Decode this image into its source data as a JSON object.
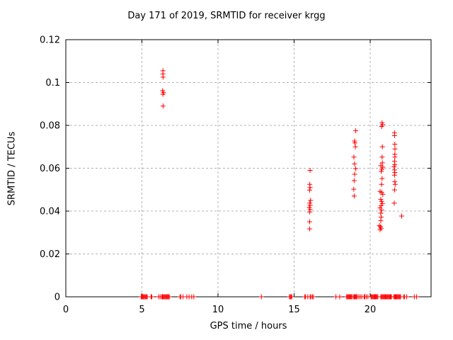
{
  "chart_data": {
    "type": "scatter",
    "title": "Day 171 of 2019, SRMTID for receiver krgg",
    "xlabel": "GPS time / hours",
    "ylabel": "SRMTID / TECUs",
    "xlim": [
      0,
      24
    ],
    "ylim": [
      0,
      0.12
    ],
    "x_ticks": [
      {
        "v": 0,
        "label": "0"
      },
      {
        "v": 5,
        "label": "5"
      },
      {
        "v": 10,
        "label": "10"
      },
      {
        "v": 15,
        "label": "15"
      },
      {
        "v": 20,
        "label": "20"
      }
    ],
    "y_ticks": [
      {
        "v": 0,
        "label": "0"
      },
      {
        "v": 0.02,
        "label": "0.02"
      },
      {
        "v": 0.04,
        "label": "0.04"
      },
      {
        "v": 0.06,
        "label": "0.06"
      },
      {
        "v": 0.08,
        "label": "0.08"
      },
      {
        "v": 0.1,
        "label": "0.1"
      },
      {
        "v": 0.12,
        "label": "0.12"
      }
    ],
    "grid": "dashed",
    "legend": "none",
    "colors": {
      "marker": "#ff0000",
      "grid": "#b3b3b3",
      "border": "#000000",
      "background": "#ffffff"
    },
    "marker": "plus",
    "series": [
      {
        "name": "SRMTID",
        "points": [
          [
            6.38,
            0.1055
          ],
          [
            6.38,
            0.104
          ],
          [
            6.39,
            0.1025
          ],
          [
            6.36,
            0.0962
          ],
          [
            6.42,
            0.0953
          ],
          [
            6.38,
            0.0945
          ],
          [
            6.39,
            0.089
          ],
          [
            16.05,
            0.059
          ],
          [
            16.03,
            0.0525
          ],
          [
            16.05,
            0.051
          ],
          [
            16.02,
            0.0498
          ],
          [
            16.08,
            0.045
          ],
          [
            16.03,
            0.0437
          ],
          [
            16.05,
            0.0427
          ],
          [
            16.0,
            0.0417
          ],
          [
            16.05,
            0.0407
          ],
          [
            16.03,
            0.0396
          ],
          [
            16.02,
            0.035
          ],
          [
            16.02,
            0.0317
          ],
          [
            19.05,
            0.0775
          ],
          [
            18.97,
            0.0727
          ],
          [
            19.0,
            0.0718
          ],
          [
            19.03,
            0.07
          ],
          [
            18.93,
            0.0652
          ],
          [
            18.97,
            0.062
          ],
          [
            19.05,
            0.0598
          ],
          [
            18.98,
            0.0572
          ],
          [
            18.95,
            0.0542
          ],
          [
            18.92,
            0.0502
          ],
          [
            18.95,
            0.047
          ],
          [
            20.78,
            0.0812
          ],
          [
            20.82,
            0.0803
          ],
          [
            20.75,
            0.0795
          ],
          [
            20.8,
            0.07
          ],
          [
            20.78,
            0.0652
          ],
          [
            20.8,
            0.0625
          ],
          [
            20.7,
            0.0612
          ],
          [
            20.83,
            0.0605
          ],
          [
            20.77,
            0.0595
          ],
          [
            20.73,
            0.0585
          ],
          [
            20.78,
            0.0552
          ],
          [
            20.75,
            0.0525
          ],
          [
            20.65,
            0.0492
          ],
          [
            20.75,
            0.0487
          ],
          [
            20.83,
            0.0478
          ],
          [
            20.7,
            0.0455
          ],
          [
            20.75,
            0.0445
          ],
          [
            20.8,
            0.0435
          ],
          [
            20.72,
            0.0425
          ],
          [
            20.65,
            0.0415
          ],
          [
            20.75,
            0.0405
          ],
          [
            20.7,
            0.039
          ],
          [
            20.72,
            0.0372
          ],
          [
            20.7,
            0.0355
          ],
          [
            20.6,
            0.0332
          ],
          [
            20.68,
            0.0327
          ],
          [
            20.72,
            0.032
          ],
          [
            20.65,
            0.0313
          ],
          [
            21.6,
            0.0765
          ],
          [
            21.6,
            0.0752
          ],
          [
            21.62,
            0.0712
          ],
          [
            21.63,
            0.069
          ],
          [
            21.62,
            0.0665
          ],
          [
            21.62,
            0.0652
          ],
          [
            21.6,
            0.0632
          ],
          [
            21.62,
            0.0617
          ],
          [
            21.57,
            0.0607
          ],
          [
            21.6,
            0.0592
          ],
          [
            21.62,
            0.058
          ],
          [
            21.6,
            0.0568
          ],
          [
            21.62,
            0.0537
          ],
          [
            21.64,
            0.0525
          ],
          [
            21.6,
            0.0499
          ],
          [
            21.58,
            0.0437
          ],
          [
            22.07,
            0.0377
          ],
          [
            4.95,
            0
          ],
          [
            5.0,
            0
          ],
          [
            5.05,
            0
          ],
          [
            5.1,
            0
          ],
          [
            5.15,
            0
          ],
          [
            5.2,
            0
          ],
          [
            5.25,
            0
          ],
          [
            5.3,
            0
          ],
          [
            5.35,
            0
          ],
          [
            5.6,
            0
          ],
          [
            5.65,
            0
          ],
          [
            6.1,
            0
          ],
          [
            6.2,
            0
          ],
          [
            6.3,
            0
          ],
          [
            6.35,
            0
          ],
          [
            6.4,
            0
          ],
          [
            6.45,
            0
          ],
          [
            6.5,
            0
          ],
          [
            6.55,
            0
          ],
          [
            6.6,
            0
          ],
          [
            6.65,
            0
          ],
          [
            6.7,
            0
          ],
          [
            6.75,
            0
          ],
          [
            6.8,
            0
          ],
          [
            7.5,
            0
          ],
          [
            7.55,
            0
          ],
          [
            7.7,
            0
          ],
          [
            7.95,
            0
          ],
          [
            8.1,
            0
          ],
          [
            8.27,
            0
          ],
          [
            8.41,
            0
          ],
          [
            12.85,
            0
          ],
          [
            14.7,
            0
          ],
          [
            14.75,
            0
          ],
          [
            14.8,
            0
          ],
          [
            14.85,
            0
          ],
          [
            15.7,
            0
          ],
          [
            15.75,
            0
          ],
          [
            15.9,
            0
          ],
          [
            16.05,
            0
          ],
          [
            16.1,
            0
          ],
          [
            16.2,
            0
          ],
          [
            16.25,
            0
          ],
          [
            17.75,
            0
          ],
          [
            18.0,
            0
          ],
          [
            18.45,
            0
          ],
          [
            18.5,
            0
          ],
          [
            18.55,
            0
          ],
          [
            18.6,
            0
          ],
          [
            18.65,
            0
          ],
          [
            18.7,
            0
          ],
          [
            18.75,
            0
          ],
          [
            18.8,
            0
          ],
          [
            18.9,
            0
          ],
          [
            18.95,
            0
          ],
          [
            19.0,
            0
          ],
          [
            19.05,
            0
          ],
          [
            19.1,
            0
          ],
          [
            19.15,
            0
          ],
          [
            19.25,
            0
          ],
          [
            19.35,
            0
          ],
          [
            19.45,
            0
          ],
          [
            19.6,
            0
          ],
          [
            19.65,
            0
          ],
          [
            19.75,
            0
          ],
          [
            19.85,
            0
          ],
          [
            20.05,
            0
          ],
          [
            20.1,
            0
          ],
          [
            20.15,
            0
          ],
          [
            20.2,
            0
          ],
          [
            20.25,
            0
          ],
          [
            20.3,
            0
          ],
          [
            20.35,
            0
          ],
          [
            20.4,
            0
          ],
          [
            20.45,
            0
          ],
          [
            20.5,
            0
          ],
          [
            20.7,
            0
          ],
          [
            20.75,
            0
          ],
          [
            20.8,
            0
          ],
          [
            20.85,
            0
          ],
          [
            20.9,
            0
          ],
          [
            20.95,
            0
          ],
          [
            21.0,
            0
          ],
          [
            21.05,
            0
          ],
          [
            21.1,
            0
          ],
          [
            21.15,
            0
          ],
          [
            21.2,
            0
          ],
          [
            21.25,
            0
          ],
          [
            21.3,
            0
          ],
          [
            21.35,
            0
          ],
          [
            21.4,
            0
          ],
          [
            21.55,
            0
          ],
          [
            21.6,
            0
          ],
          [
            21.65,
            0
          ],
          [
            21.7,
            0
          ],
          [
            21.75,
            0
          ],
          [
            21.8,
            0
          ],
          [
            21.85,
            0
          ],
          [
            21.9,
            0
          ],
          [
            21.95,
            0
          ],
          [
            22.0,
            0
          ],
          [
            22.2,
            0
          ],
          [
            22.25,
            0
          ],
          [
            22.4,
            0
          ],
          [
            22.9,
            0
          ],
          [
            23.05,
            0
          ]
        ]
      }
    ]
  }
}
